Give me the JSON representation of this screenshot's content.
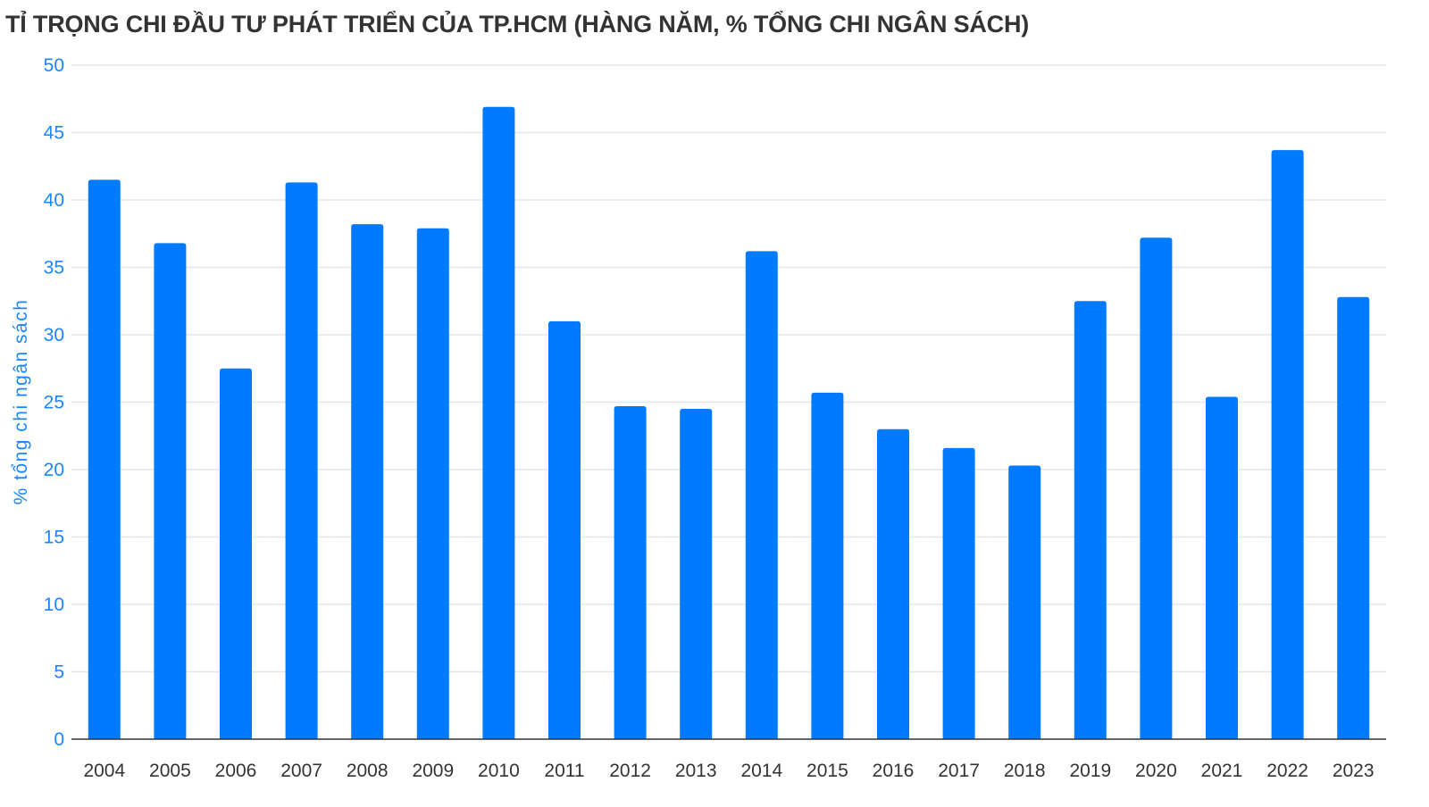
{
  "chart_data": {
    "type": "bar",
    "title": "TỈ TRỌNG CHI ĐẦU TƯ PHÁT TRIỂN CỦA TP.HCM (HÀNG NĂM, % TỔNG CHI NGÂN SÁCH)",
    "xlabel": "",
    "ylabel": "% tổng chi ngân sách",
    "ylim": [
      0,
      50
    ],
    "yticks": [
      0,
      5,
      10,
      15,
      20,
      25,
      30,
      35,
      40,
      45,
      50
    ],
    "grid": true,
    "categories": [
      "2004",
      "2005",
      "2006",
      "2007",
      "2008",
      "2009",
      "2010",
      "2011",
      "2012",
      "2013",
      "2014",
      "2015",
      "2016",
      "2017",
      "2018",
      "2019",
      "2020",
      "2021",
      "2022",
      "2023"
    ],
    "values": [
      41.5,
      36.8,
      27.5,
      41.3,
      38.2,
      37.9,
      46.9,
      31.0,
      24.7,
      24.5,
      36.2,
      25.7,
      23.0,
      21.6,
      20.3,
      32.5,
      37.2,
      25.4,
      43.7,
      32.8
    ],
    "colors": {
      "bar": "#007bff",
      "grid": "#e6e6e6",
      "axis": "#333333",
      "tick": "#1a86ff"
    }
  }
}
